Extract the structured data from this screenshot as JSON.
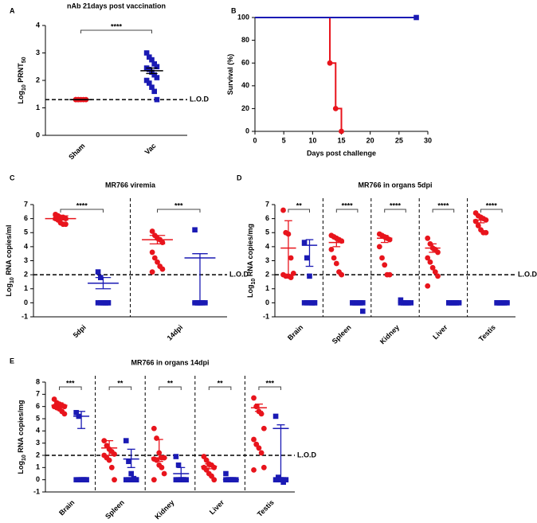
{
  "chart_data": [
    {
      "type": "dot",
      "panel": "A",
      "title": "nAb 21days post vaccination",
      "ylabel": [
        {
          "text": "Log"
        },
        {
          "text": "10",
          "sub": true
        },
        {
          "text": " PRNT"
        },
        {
          "text": "50",
          "sub": true
        }
      ],
      "ylim": [
        0,
        4
      ],
      "yticks": [
        0,
        1,
        2,
        3,
        4
      ],
      "lod": 1.3,
      "lod_label": "L.O.D",
      "categories": [
        "Sham",
        "Vac"
      ],
      "overall_significance": "****",
      "separators": false,
      "series": [
        {
          "color": "#e8141c",
          "line_color": "#000000",
          "marker": "circle",
          "values": [
            [
              1.3,
              1.3,
              1.3,
              1.3,
              1.3,
              1.3,
              1.3
            ],
            null
          ],
          "mean": [
            1.3,
            null
          ],
          "error_low": [
            1.3,
            null
          ],
          "error_high": [
            1.3,
            null
          ]
        },
        {
          "color": "#1a1ab4",
          "line_color": "#000000",
          "marker": "square",
          "values": [
            null,
            [
              3.0,
              2.85,
              2.75,
              2.6,
              2.5,
              2.45,
              2.4,
              2.3,
              2.2,
              2.1,
              2.0,
              1.9,
              1.75,
              1.6,
              1.3
            ]
          ],
          "mean": [
            null,
            2.35
          ],
          "error_low": [
            null,
            2.25
          ],
          "error_high": [
            null,
            2.45
          ]
        }
      ]
    },
    {
      "type": "line",
      "step": true,
      "panel": "B",
      "ylabel": [
        {
          "text": "Survival (%)"
        }
      ],
      "xlabel": "Days post challenge",
      "xlim": [
        0,
        30
      ],
      "xticks": [
        0,
        5,
        10,
        15,
        20,
        25,
        30
      ],
      "ylim": [
        0,
        100
      ],
      "yticks": [
        0,
        20,
        40,
        60,
        80,
        100
      ],
      "series": [
        {
          "color": "#e8141c",
          "marker": "circle",
          "x": [
            0,
            13,
            14,
            15
          ],
          "values": [
            100,
            60,
            20,
            0
          ]
        },
        {
          "color": "#1a1ab4",
          "marker": "square",
          "x": [
            0,
            28
          ],
          "values": [
            100,
            100
          ]
        }
      ]
    },
    {
      "type": "dot",
      "panel": "C",
      "title": "MR766 viremia",
      "ylabel": [
        {
          "text": "Log"
        },
        {
          "text": "10",
          "sub": true
        },
        {
          "text": " RNA copies/ml"
        }
      ],
      "ylim": [
        -1,
        7
      ],
      "yticks": [
        -1,
        0,
        1,
        2,
        3,
        4,
        5,
        6,
        7
      ],
      "lod": 2,
      "lod_label": "L.O.D",
      "categories": [
        "5dpi",
        "14dpi"
      ],
      "significance": [
        "****",
        "***"
      ],
      "separators": true,
      "series": [
        {
          "color": "#e8141c",
          "line_color": "#e8141c",
          "marker": "circle",
          "values": [
            [
              6.3,
              6.2,
              6.1,
              6.1,
              6.0,
              6.0,
              5.9,
              5.7,
              5.6,
              5.6
            ],
            [
              5.1,
              4.8,
              4.6,
              4.5,
              4.3,
              3.6,
              3.2,
              2.9,
              2.6,
              2.4,
              2.2
            ]
          ],
          "mean": [
            6.0,
            4.5
          ],
          "error_low": [
            5.9,
            4.2
          ],
          "error_high": [
            6.2,
            4.8
          ]
        },
        {
          "color": "#1a1ab4",
          "line_color": "#1a1ab4",
          "marker": "square",
          "values": [
            [
              2.2,
              1.8,
              0,
              0,
              0,
              0,
              0,
              0,
              0,
              0
            ],
            [
              5.2,
              0,
              0,
              0,
              0,
              0,
              0,
              0
            ]
          ],
          "mean": [
            1.4,
            3.2
          ],
          "error_low": [
            1.0,
            0
          ],
          "error_high": [
            1.8,
            3.5
          ]
        }
      ]
    },
    {
      "type": "dot",
      "panel": "D",
      "title": "MR766 in organs 5dpi",
      "ylabel": [
        {
          "text": "Log"
        },
        {
          "text": "10",
          "sub": true
        },
        {
          "text": " RNA copies/mg"
        }
      ],
      "ylim": [
        -1,
        7
      ],
      "yticks": [
        -1,
        0,
        1,
        2,
        3,
        4,
        5,
        6,
        7
      ],
      "lod": 2,
      "lod_label": "L.O.D",
      "categories": [
        "Brain",
        "Spleen",
        "Kidney",
        "Liver",
        "Testis"
      ],
      "significance": [
        "**",
        "****",
        "****",
        "****",
        "****"
      ],
      "separators": true,
      "series": [
        {
          "color": "#e8141c",
          "line_color": "#e8141c",
          "marker": "circle",
          "values": [
            [
              6.6,
              5.0,
              4.9,
              3.2,
              2.1,
              2.0,
              1.9,
              1.9,
              1.8
            ],
            [
              4.8,
              4.7,
              4.6,
              4.5,
              4.4,
              3.8,
              3.2,
              2.8,
              2.2,
              2.0
            ],
            [
              4.9,
              4.8,
              4.7,
              4.6,
              4.5,
              4.0,
              3.2,
              2.7,
              2.0,
              2.0
            ],
            [
              4.6,
              4.2,
              3.9,
              3.8,
              3.6,
              3.2,
              2.9,
              2.5,
              2.2,
              1.9,
              1.2
            ],
            [
              6.4,
              6.2,
              6.1,
              6.0,
              5.9,
              5.8,
              5.5,
              5.2,
              5.0,
              5.0
            ]
          ],
          "mean": [
            3.9,
            4.3,
            4.6,
            3.9,
            5.9
          ],
          "error_low": [
            2.0,
            4.0,
            4.3,
            3.6,
            5.7
          ],
          "error_high": [
            5.85,
            4.6,
            4.8,
            4.2,
            6.1
          ]
        },
        {
          "color": "#1a1ab4",
          "line_color": "#1a1ab4",
          "marker": "square",
          "values": [
            [
              4.3,
              3.2,
              1.9,
              0,
              0,
              0,
              0,
              0,
              0,
              0
            ],
            [
              0,
              0,
              0,
              0,
              0,
              0,
              0,
              0,
              0,
              -0.6
            ],
            [
              0.2,
              0,
              0,
              0,
              0,
              0,
              0,
              0,
              0
            ],
            [
              0,
              0,
              0,
              0,
              0,
              0,
              0,
              0,
              0
            ],
            [
              0,
              0,
              0,
              0,
              0,
              0,
              0,
              0,
              0
            ]
          ],
          "mean": [
            4.1,
            0,
            0,
            0,
            0
          ],
          "error_low": [
            2.6,
            0,
            0,
            0,
            0
          ],
          "error_high": [
            4.5,
            0,
            0,
            0,
            0
          ]
        }
      ]
    },
    {
      "type": "dot",
      "panel": "E",
      "title": "MR766 in organs 14dpi",
      "ylabel": [
        {
          "text": "Log"
        },
        {
          "text": "10",
          "sub": true
        },
        {
          "text": " RNA copies/mg"
        }
      ],
      "ylim": [
        -1,
        8
      ],
      "yticks": [
        -1,
        0,
        1,
        2,
        3,
        4,
        5,
        6,
        7,
        8
      ],
      "lod": 2,
      "lod_label": "L.O.D",
      "categories": [
        "Brain",
        "Spleen",
        "Kidney",
        "Liver",
        "Testis"
      ],
      "significance": [
        "***",
        "**",
        "**",
        "**",
        "***"
      ],
      "separators": true,
      "series": [
        {
          "color": "#e8141c",
          "line_color": "#e8141c",
          "marker": "circle",
          "values": [
            [
              6.6,
              6.3,
              6.2,
              6.1,
              6.0,
              6.0,
              5.9,
              5.8,
              5.6,
              5.4
            ],
            [
              3.2,
              2.8,
              2.5,
              2.3,
              2.1,
              2.0,
              1.8,
              1.6,
              1.0,
              0
            ],
            [
              4.2,
              3.4,
              2.2,
              1.8,
              1.8,
              1.7,
              1.6,
              1.2,
              1.0,
              0.5,
              0
            ],
            [
              1.9,
              1.6,
              1.3,
              1.2,
              1.0,
              1.0,
              0.8,
              0.5,
              0.3,
              0
            ],
            [
              6.7,
              6.0,
              5.6,
              5.4,
              4.2,
              3.3,
              2.9,
              2.6,
              2.2,
              1.0,
              0.8
            ]
          ],
          "mean": [
            6.1,
            2.6,
            1.8,
            1.1,
            5.9
          ],
          "error_low": [
            5.9,
            2.0,
            1.5,
            0.9,
            5.6
          ],
          "error_high": [
            6.3,
            3.2,
            3.3,
            1.3,
            6.2
          ]
        },
        {
          "color": "#1a1ab4",
          "line_color": "#1a1ab4",
          "marker": "square",
          "values": [
            [
              5.5,
              5.2,
              0,
              0,
              0,
              0,
              0,
              0,
              0,
              0
            ],
            [
              3.2,
              1.5,
              0.5,
              0.1,
              0,
              0,
              0,
              0,
              0,
              0
            ],
            [
              1.9,
              1.2,
              0,
              0,
              0,
              0,
              0,
              0,
              0
            ],
            [
              0.5,
              0,
              0,
              0,
              0,
              0,
              0,
              0,
              0
            ],
            [
              5.2,
              0.2,
              0,
              -0.2,
              0,
              0,
              0,
              0,
              0
            ]
          ],
          "mean": [
            5.2,
            1.7,
            0.5,
            0,
            4.2
          ],
          "error_low": [
            4.2,
            1.0,
            0,
            0,
            0
          ],
          "error_high": [
            5.6,
            2.5,
            1.0,
            0,
            4.5
          ]
        }
      ]
    }
  ]
}
